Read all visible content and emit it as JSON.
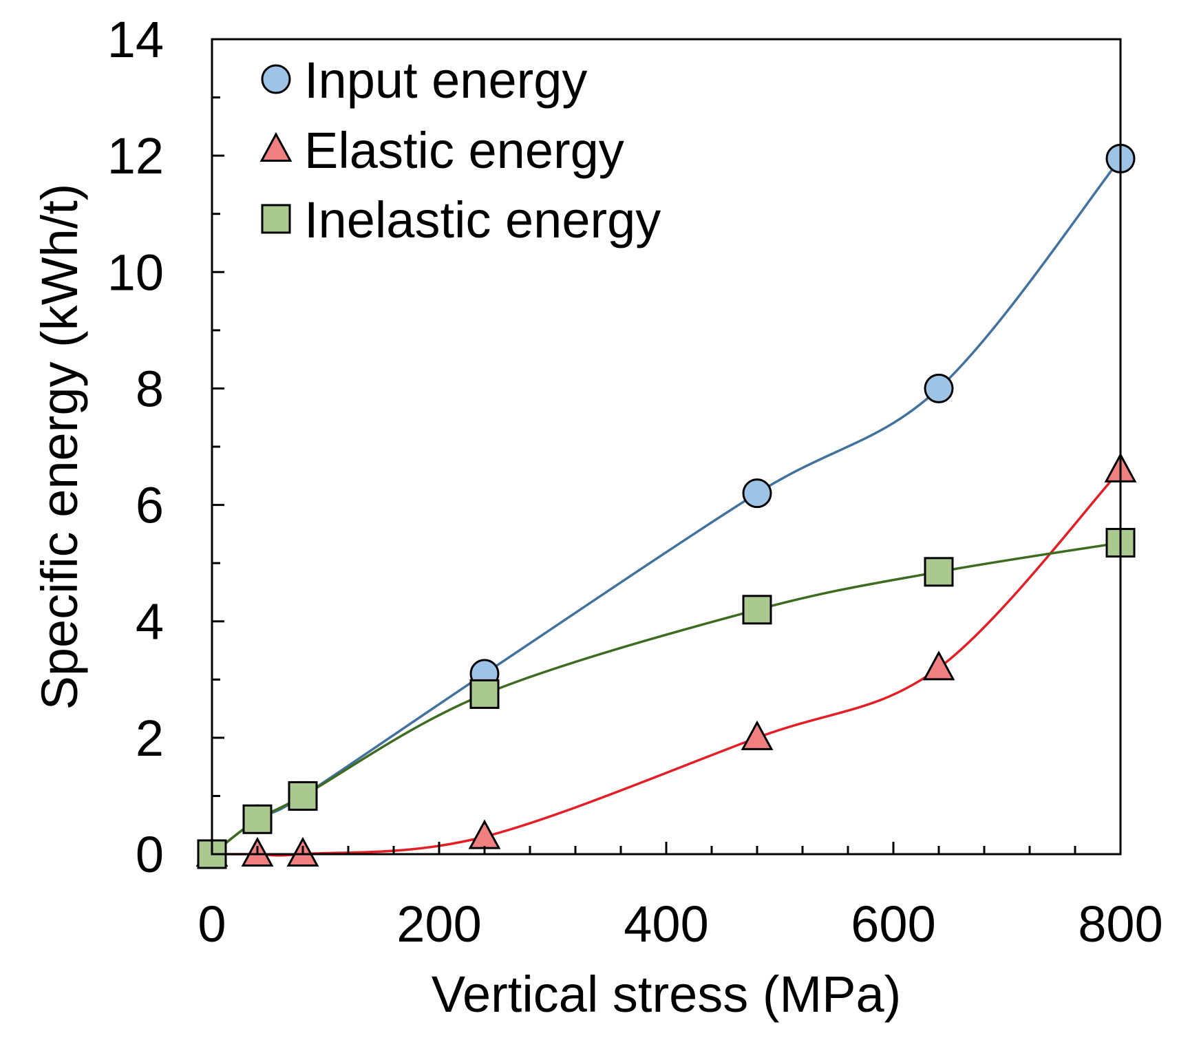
{
  "chart_data": {
    "type": "line",
    "xlabel": "Vertical stress (MPa)",
    "ylabel": "Specific energy (kWh/t)",
    "xlim": [
      0,
      800
    ],
    "ylim": [
      0,
      14
    ],
    "x_ticks": [
      "0",
      "200",
      "400",
      "600",
      "800"
    ],
    "y_ticks": [
      "0",
      "2",
      "4",
      "6",
      "8",
      "10",
      "12",
      "14"
    ],
    "grid": false,
    "legend_position": "top-left",
    "series": [
      {
        "name": "Input energy",
        "marker": "circle",
        "line_color": "#41719c",
        "fill_color": "#9dc3e6",
        "x": [
          0,
          40,
          80,
          240,
          480,
          640,
          800
        ],
        "y": [
          0,
          0.6,
          1.0,
          3.1,
          6.2,
          8.0,
          11.95
        ]
      },
      {
        "name": "Elastic energy",
        "marker": "triangle",
        "line_color": "#e41e26",
        "fill_color": "#f08080",
        "x": [
          0,
          40,
          80,
          240,
          480,
          640,
          800
        ],
        "y": [
          0,
          0,
          0,
          0.3,
          2.0,
          3.2,
          6.6
        ]
      },
      {
        "name": "Inelastic energy",
        "marker": "square",
        "line_color": "#3d6b1f",
        "fill_color": "#a9c98f",
        "x": [
          0,
          40,
          80,
          240,
          480,
          640,
          800
        ],
        "y": [
          0,
          0.6,
          1.0,
          2.75,
          4.2,
          4.85,
          5.35
        ]
      }
    ]
  }
}
